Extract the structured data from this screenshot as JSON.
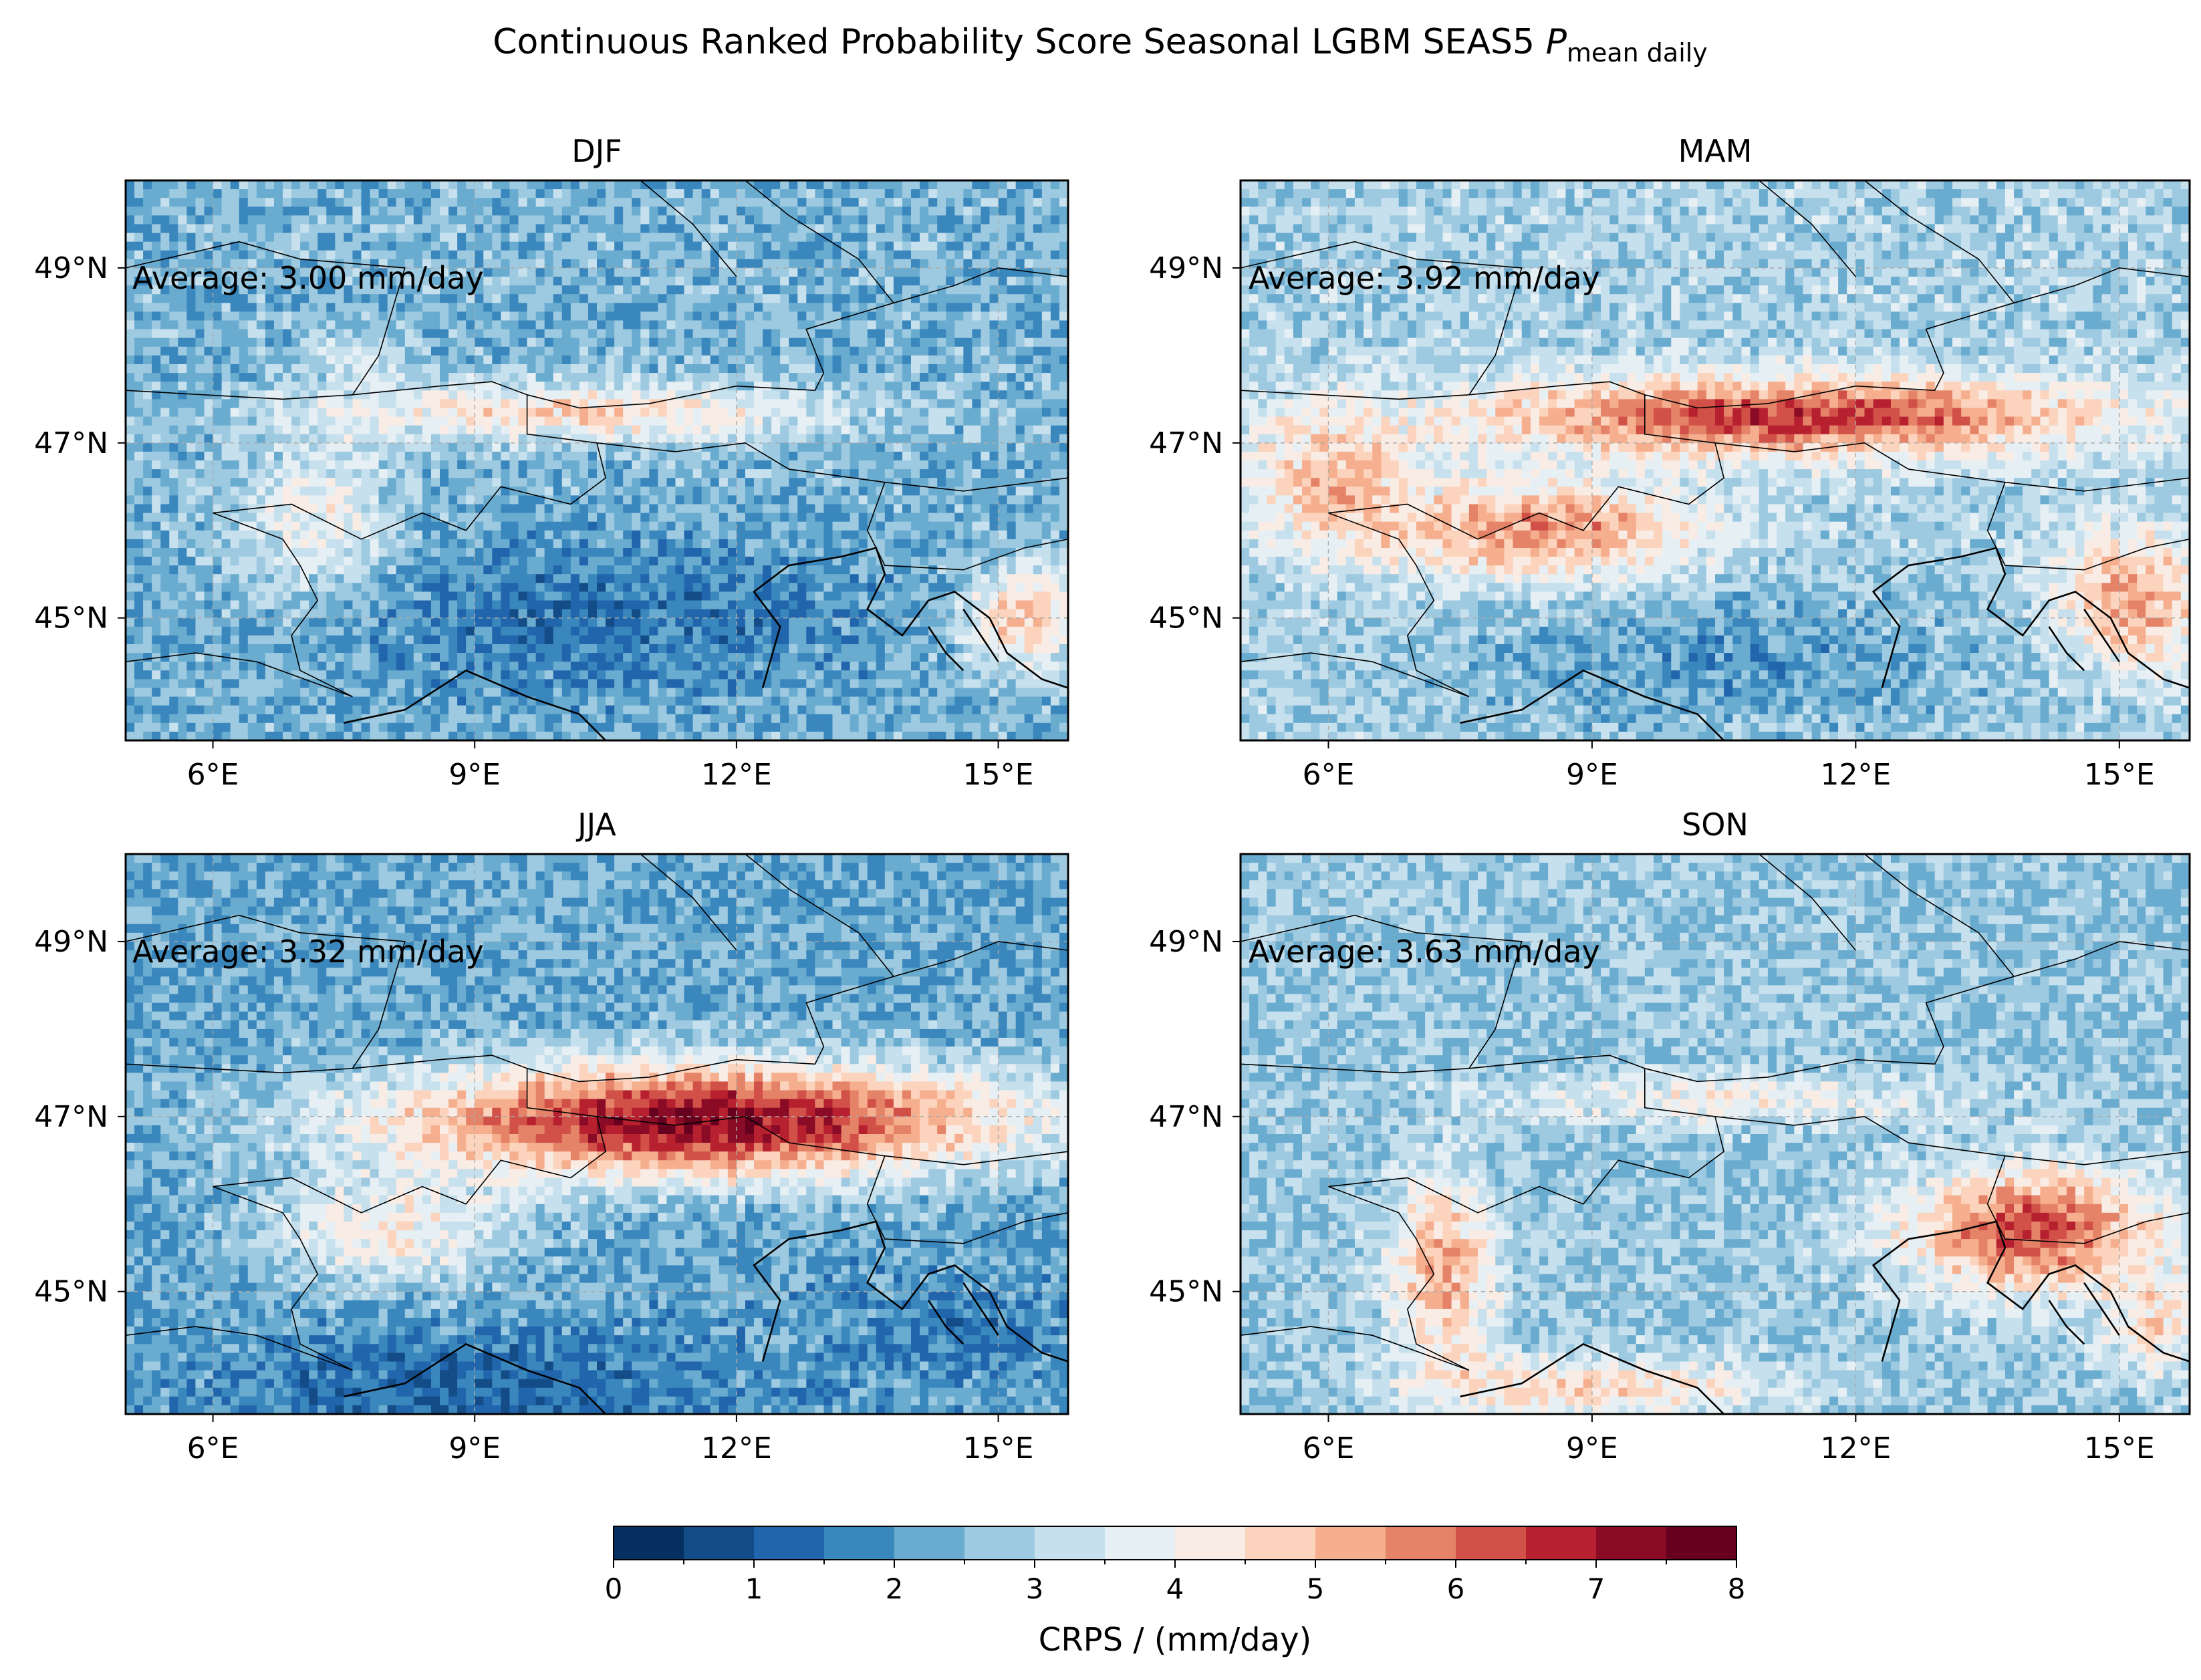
{
  "figure": {
    "title_main": "Continuous Ranked Probability Score Seasonal LGBM SEAS5 ",
    "title_var": "P",
    "title_sub": "mean daily"
  },
  "map": {
    "lon_range": [
      5.0,
      15.8
    ],
    "lat_range": [
      43.6,
      50.0
    ],
    "lon_ticks": [
      6,
      9,
      12,
      15
    ],
    "lat_ticks": [
      45,
      47,
      49
    ],
    "lon_tick_labels": [
      "6°E",
      "9°E",
      "12°E",
      "15°E"
    ],
    "lat_tick_labels": [
      "45°N",
      "47°N",
      "49°N"
    ],
    "gridlines": true
  },
  "panels": [
    {
      "season": "DJF",
      "average_label": "Average: 3.00 mm/day",
      "average": 3.0
    },
    {
      "season": "MAM",
      "average_label": "Average: 3.92 mm/day",
      "average": 3.92
    },
    {
      "season": "JJA",
      "average_label": "Average: 3.32 mm/day",
      "average": 3.32
    },
    {
      "season": "SON",
      "average_label": "Average: 3.63 mm/day",
      "average": 3.63
    }
  ],
  "colorbar": {
    "label": "CRPS / (mm/day)",
    "min": 0,
    "max": 8,
    "step": 0.5,
    "tick_labels": [
      "0",
      "1",
      "2",
      "3",
      "4",
      "5",
      "6",
      "7",
      "8"
    ],
    "colors": [
      "#053061",
      "#134c87",
      "#2166ac",
      "#3a87bd",
      "#6aacd0",
      "#9dcae1",
      "#c7e0ed",
      "#e5eff4",
      "#f8ece5",
      "#fcd3bc",
      "#f6af8e",
      "#e58368",
      "#d15048",
      "#b6202f",
      "#8a0b25",
      "#67001f"
    ]
  },
  "colors": {
    "season_title": "#ff0000",
    "axis": "#000000",
    "gridline": "#aaaaaa"
  }
}
